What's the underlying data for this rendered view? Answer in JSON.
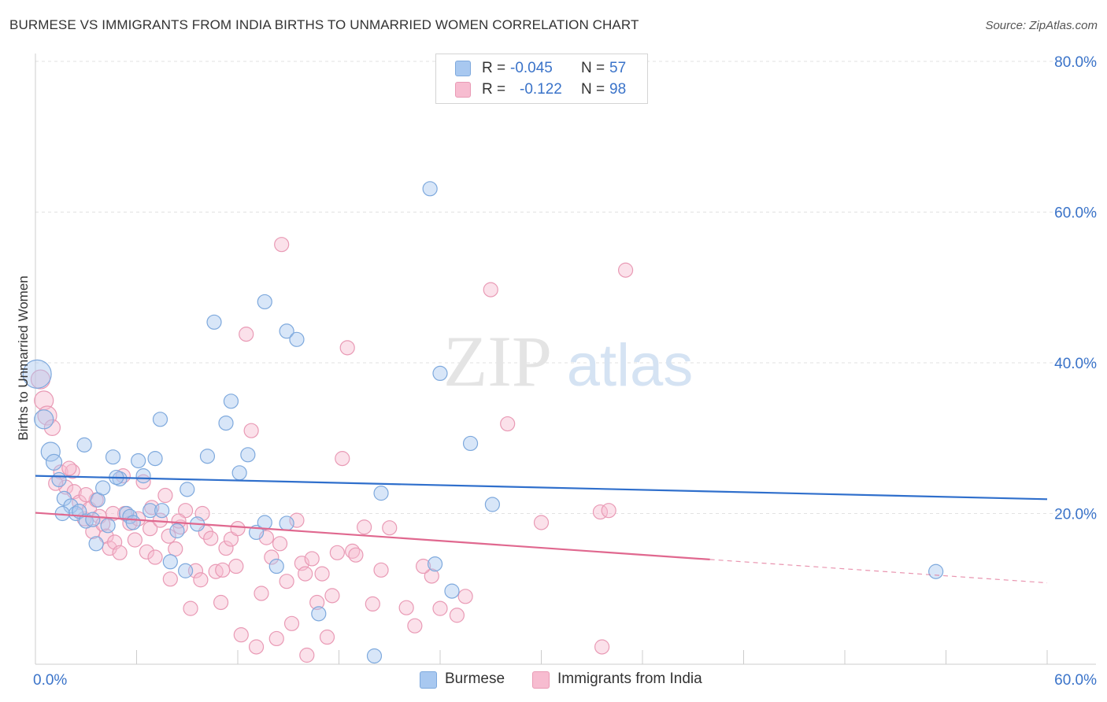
{
  "title": "BURMESE VS IMMIGRANTS FROM INDIA BIRTHS TO UNMARRIED WOMEN CORRELATION CHART",
  "source": "Source: ZipAtlas.com",
  "watermark": {
    "zip": "ZIP",
    "atlas": "atlas"
  },
  "legend": {
    "r_label": "R =",
    "n_label": "N =",
    "series": [
      {
        "name": "Burmese",
        "r": "-0.045",
        "n": "57",
        "color": "#a8c8f0",
        "stroke": "#7ea9dd"
      },
      {
        "name": "Immigrants from India",
        "r": "-0.122",
        "n": "98",
        "color": "#f7bcd0",
        "stroke": "#e99ab5"
      }
    ]
  },
  "chart_data": {
    "type": "scatter",
    "title": "BURMESE VS IMMIGRANTS FROM INDIA BIRTHS TO UNMARRIED WOMEN CORRELATION CHART",
    "xlabel": "",
    "ylabel": "Births to Unmarried Women",
    "xlim": [
      0,
      60
    ],
    "ylim": [
      0,
      80
    ],
    "x_tick_labels": [
      "0.0%",
      "60.0%"
    ],
    "y_tick_labels": [
      "20.0%",
      "40.0%",
      "60.0%",
      "80.0%"
    ],
    "y_ticks": [
      20,
      40,
      60,
      80
    ],
    "grid": true,
    "legend_position": "top-center",
    "series": [
      {
        "name": "Burmese",
        "color": "#a8c8f0",
        "trend_color": "#2f6fcc",
        "trend": {
          "x0": 0,
          "y0": 25.0,
          "x1": 60,
          "y1": 21.9,
          "solid_until": 60
        },
        "points": [
          [
            0.1,
            38.5,
            18
          ],
          [
            0.5,
            32.5,
            12
          ],
          [
            0.9,
            28.2,
            12
          ],
          [
            1.1,
            26.8,
            10
          ],
          [
            1.4,
            24.5,
            9
          ],
          [
            1.7,
            22.0,
            9
          ],
          [
            2.1,
            21.0,
            9
          ],
          [
            2.4,
            20.0,
            9
          ],
          [
            2.6,
            20.3,
            9
          ],
          [
            3.0,
            19.0,
            9
          ],
          [
            3.4,
            19.2,
            9
          ],
          [
            2.9,
            29.1,
            9
          ],
          [
            3.7,
            21.8,
            9
          ],
          [
            4.0,
            23.4,
            9
          ],
          [
            4.3,
            18.4,
            9
          ],
          [
            4.6,
            27.5,
            9
          ],
          [
            5.0,
            24.6,
            9
          ],
          [
            5.4,
            20.0,
            9
          ],
          [
            5.6,
            19.6,
            9
          ],
          [
            6.1,
            27.0,
            9
          ],
          [
            6.4,
            25.0,
            9
          ],
          [
            6.8,
            20.4,
            9
          ],
          [
            7.1,
            27.3,
            9
          ],
          [
            7.5,
            20.4,
            9
          ],
          [
            7.4,
            32.5,
            9
          ],
          [
            8.0,
            13.6,
            9
          ],
          [
            8.4,
            17.7,
            9
          ],
          [
            8.9,
            12.4,
            9
          ],
          [
            9.0,
            23.2,
            9
          ],
          [
            9.6,
            18.6,
            9
          ],
          [
            10.2,
            27.6,
            9
          ],
          [
            10.6,
            45.4,
            9
          ],
          [
            11.6,
            34.9,
            9
          ],
          [
            11.3,
            32.0,
            9
          ],
          [
            12.1,
            25.4,
            9
          ],
          [
            12.6,
            27.8,
            9
          ],
          [
            13.6,
            48.1,
            9
          ],
          [
            13.1,
            17.5,
            9
          ],
          [
            13.6,
            18.8,
            9
          ],
          [
            14.3,
            13.0,
            9
          ],
          [
            14.9,
            44.2,
            9
          ],
          [
            15.5,
            43.1,
            9
          ],
          [
            14.9,
            18.7,
            9
          ],
          [
            16.8,
            6.7,
            9
          ],
          [
            20.5,
            22.7,
            9
          ],
          [
            20.1,
            1.1,
            9
          ],
          [
            23.4,
            63.1,
            9
          ],
          [
            24.0,
            38.6,
            9
          ],
          [
            23.7,
            13.3,
            9
          ],
          [
            24.7,
            9.7,
            9
          ],
          [
            25.8,
            29.3,
            9
          ],
          [
            27.1,
            21.2,
            9
          ],
          [
            53.4,
            12.3,
            9
          ],
          [
            3.6,
            16.0,
            9
          ],
          [
            5.8,
            18.8,
            9
          ],
          [
            1.6,
            20.0,
            9
          ],
          [
            4.8,
            24.8,
            9
          ]
        ]
      },
      {
        "name": "Immigrants from India",
        "color": "#f7bcd0",
        "trend_color": "#e0688f",
        "trend": {
          "x0": 0,
          "y0": 20.1,
          "x1": 60,
          "y1": 10.8,
          "solid_until": 40
        },
        "points": [
          [
            0.3,
            37.8,
            12
          ],
          [
            0.5,
            35.0,
            12
          ],
          [
            0.7,
            33.0,
            12
          ],
          [
            1.0,
            31.4,
            10
          ],
          [
            1.5,
            25.5,
            9
          ],
          [
            1.8,
            23.5,
            9
          ],
          [
            2.2,
            25.6,
            9
          ],
          [
            2.3,
            22.9,
            9
          ],
          [
            2.6,
            21.5,
            9
          ],
          [
            2.9,
            19.3,
            9
          ],
          [
            3.2,
            20.6,
            9
          ],
          [
            3.4,
            17.6,
            9
          ],
          [
            3.6,
            21.8,
            9
          ],
          [
            3.8,
            19.6,
            9
          ],
          [
            4.0,
            18.6,
            9
          ],
          [
            4.2,
            17.0,
            9
          ],
          [
            4.4,
            15.4,
            9
          ],
          [
            4.7,
            16.2,
            9
          ],
          [
            5.0,
            14.8,
            9
          ],
          [
            5.3,
            20.0,
            9
          ],
          [
            5.6,
            18.7,
            9
          ],
          [
            5.9,
            16.5,
            9
          ],
          [
            6.1,
            19.3,
            9
          ],
          [
            6.4,
            24.2,
            9
          ],
          [
            6.6,
            14.9,
            9
          ],
          [
            6.8,
            18.0,
            9
          ],
          [
            7.1,
            14.2,
            9
          ],
          [
            7.4,
            19.1,
            9
          ],
          [
            7.7,
            22.4,
            9
          ],
          [
            8.0,
            11.3,
            9
          ],
          [
            8.3,
            15.3,
            9
          ],
          [
            8.6,
            18.2,
            9
          ],
          [
            8.9,
            20.4,
            9
          ],
          [
            9.2,
            7.4,
            9
          ],
          [
            9.5,
            12.4,
            9
          ],
          [
            9.8,
            11.2,
            9
          ],
          [
            10.1,
            17.5,
            9
          ],
          [
            10.4,
            16.7,
            9
          ],
          [
            10.7,
            12.3,
            9
          ],
          [
            11.0,
            8.2,
            9
          ],
          [
            11.3,
            15.4,
            9
          ],
          [
            11.6,
            16.6,
            9
          ],
          [
            11.9,
            13.0,
            9
          ],
          [
            12.2,
            3.9,
            9
          ],
          [
            12.5,
            43.8,
            9
          ],
          [
            12.8,
            31.0,
            9
          ],
          [
            13.1,
            2.3,
            9
          ],
          [
            13.4,
            9.4,
            9
          ],
          [
            13.7,
            16.8,
            9
          ],
          [
            14.0,
            14.2,
            9
          ],
          [
            14.3,
            3.4,
            9
          ],
          [
            14.6,
            55.7,
            9
          ],
          [
            14.9,
            11.0,
            9
          ],
          [
            15.2,
            5.4,
            9
          ],
          [
            15.5,
            19.1,
            9
          ],
          [
            15.8,
            13.4,
            9
          ],
          [
            16.1,
            1.2,
            9
          ],
          [
            16.4,
            14.0,
            9
          ],
          [
            16.7,
            8.2,
            9
          ],
          [
            17.0,
            12.0,
            9
          ],
          [
            17.3,
            3.6,
            9
          ],
          [
            17.6,
            9.1,
            9
          ],
          [
            17.9,
            14.8,
            9
          ],
          [
            18.2,
            27.3,
            9
          ],
          [
            18.5,
            42.0,
            9
          ],
          [
            18.8,
            15.0,
            9
          ],
          [
            19.5,
            18.2,
            9
          ],
          [
            20.0,
            8.0,
            9
          ],
          [
            21.0,
            18.1,
            9
          ],
          [
            22.0,
            7.5,
            9
          ],
          [
            22.5,
            5.1,
            9
          ],
          [
            23.5,
            11.7,
            9
          ],
          [
            24.0,
            7.4,
            9
          ],
          [
            25.0,
            6.5,
            9
          ],
          [
            27.0,
            49.7,
            9
          ],
          [
            28.0,
            31.9,
            9
          ],
          [
            30.0,
            18.8,
            9
          ],
          [
            33.5,
            20.2,
            9
          ],
          [
            34.0,
            20.4,
            9
          ],
          [
            35.0,
            52.3,
            9
          ],
          [
            33.6,
            2.3,
            9
          ],
          [
            2.0,
            26.0,
            9
          ],
          [
            3.0,
            22.5,
            9
          ],
          [
            1.2,
            24.0,
            9
          ],
          [
            4.6,
            20.0,
            9
          ],
          [
            5.2,
            25.0,
            9
          ],
          [
            6.9,
            20.8,
            9
          ],
          [
            8.5,
            19.0,
            9
          ],
          [
            9.9,
            20.0,
            9
          ],
          [
            12.0,
            18.0,
            9
          ],
          [
            14.5,
            16.0,
            9
          ],
          [
            16.0,
            12.0,
            9
          ],
          [
            19.0,
            14.5,
            9
          ],
          [
            20.5,
            12.5,
            9
          ],
          [
            23.0,
            13.0,
            9
          ],
          [
            25.5,
            9.0,
            9
          ],
          [
            11.1,
            12.5,
            9
          ],
          [
            7.9,
            17.0,
            9
          ]
        ]
      }
    ]
  }
}
